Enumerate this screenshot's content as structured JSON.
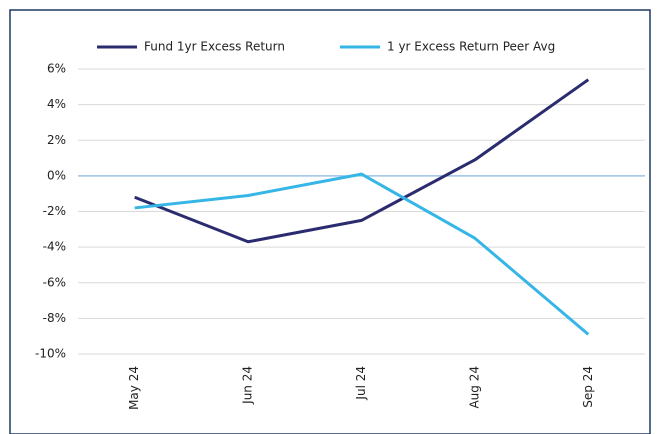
{
  "chart_data": {
    "type": "line",
    "categories": [
      "May 24",
      "Jun 24",
      "Jul 24",
      "Aug 24",
      "Sep 24"
    ],
    "series": [
      {
        "name": "Fund 1yr Excess Return",
        "color": "#2b2b6f",
        "values": [
          -1.2,
          -3.7,
          -2.5,
          0.9,
          5.4
        ]
      },
      {
        "name": "1 yr Excess Return Peer Avg",
        "color": "#35b6e6",
        "values": [
          -1.8,
          -1.1,
          0.1,
          -3.5,
          -8.9
        ]
      }
    ],
    "ylim": [
      -10,
      6
    ],
    "yticks": [
      {
        "value": -10,
        "label": "-10%"
      },
      {
        "value": -8,
        "label": "-8%"
      },
      {
        "value": -6,
        "label": "-6%"
      },
      {
        "value": -4,
        "label": "-4%"
      },
      {
        "value": -2,
        "label": "-2%"
      },
      {
        "value": 0,
        "label": "0%"
      },
      {
        "value": 2,
        "label": "2%"
      },
      {
        "value": 4,
        "label": "4%"
      },
      {
        "value": 6,
        "label": "6%"
      }
    ],
    "grid": true
  }
}
